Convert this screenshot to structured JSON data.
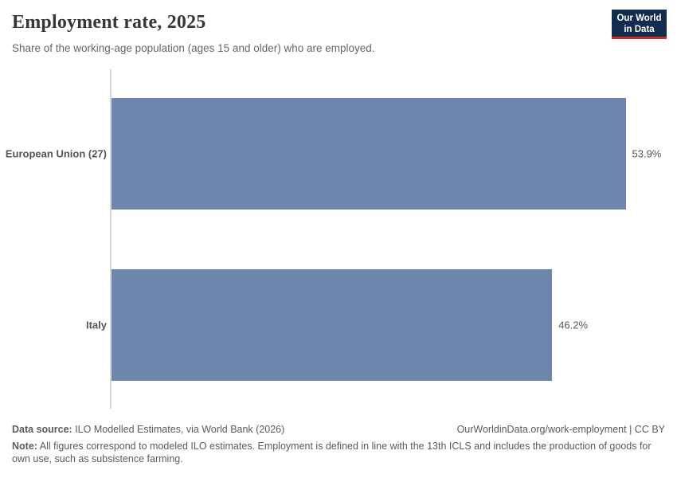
{
  "header": {
    "title": "Employment rate, 2025",
    "subtitle": "Share of the working-age population (ages 15 and older) who are employed.",
    "logo_line1": "Our World",
    "logo_line2": "in Data"
  },
  "chart_data": {
    "type": "bar",
    "orientation": "horizontal",
    "categories": [
      "European Union (27)",
      "Italy"
    ],
    "values": [
      53.9,
      46.2
    ],
    "value_labels": [
      "53.9%",
      "46.2%"
    ],
    "title": "Employment rate, 2025",
    "xlabel": "",
    "ylabel": "",
    "xlim": [
      0,
      53.9
    ],
    "grid": false,
    "legend": false,
    "bar_color": "#6e85ad",
    "axis_line_color": "#d6d6d6"
  },
  "footer": {
    "data_source_label": "Data source:",
    "data_source_text": " ILO Modelled Estimates, via World Bank (2026)",
    "link_text": "OurWorldinData.org/work-employment | CC BY",
    "note_label": "Note:",
    "note_text": " All figures correspond to modeled ILO estimates. Employment is defined in line with the 13th ICLS and includes the production of goods for own use, such as subsistence farming."
  }
}
